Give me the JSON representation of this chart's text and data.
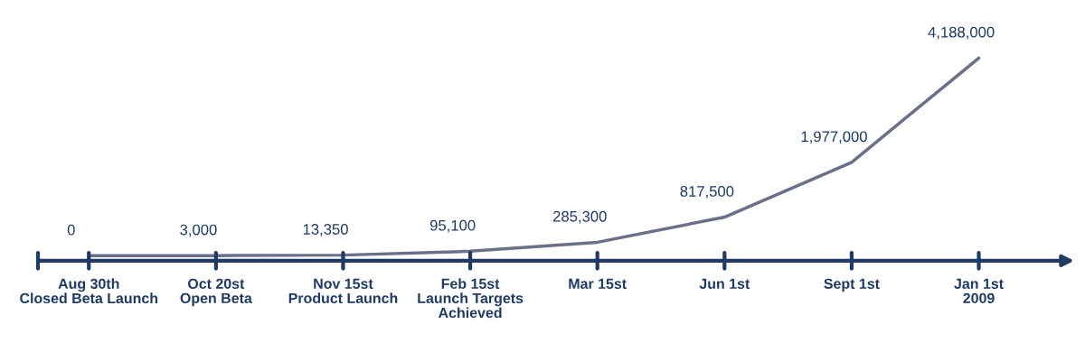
{
  "chart_data": {
    "type": "line",
    "categories": [
      "Aug 30th\nClosed Beta Launch",
      "Oct 20st\nOpen Beta",
      "Nov 15st\nProduct Launch",
      "Feb 15st\nLaunch Targets\nAchieved",
      "Mar 15st",
      "Jun 1st",
      "Sept 1st",
      "Jan 1st\n2009"
    ],
    "series": [
      {
        "color": "#6b7088",
        "values": [
          0,
          3000,
          13350,
          95100,
          285300,
          817500,
          1977000,
          4188000
        ],
        "value_labels": [
          "0",
          "3,000",
          "13,350",
          "95,100",
          "285,300",
          "817,500",
          "1,977,000",
          "4,188,000"
        ]
      }
    ],
    "grid": false,
    "legend": false,
    "marker": "none",
    "line_style": "solid"
  }
}
